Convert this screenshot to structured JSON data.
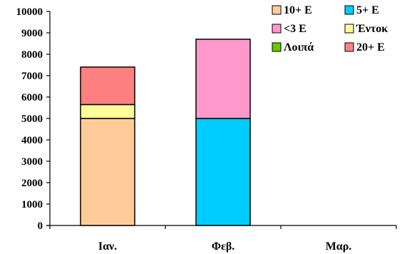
{
  "chart_data": {
    "type": "bar",
    "stacked": true,
    "categories": [
      "Ιαν.",
      "Φεβ.",
      "Μαρ."
    ],
    "series": [
      {
        "name": "10+ E",
        "color": "#FFCC99",
        "values": [
          5000,
          0,
          0
        ]
      },
      {
        "name": "5+ E",
        "color": "#00CCFF",
        "values": [
          0,
          5000,
          0
        ]
      },
      {
        "name": "<3 E",
        "color": "#FF99CC",
        "values": [
          0,
          3700,
          0
        ]
      },
      {
        "name": "Έντοκ",
        "color": "#FFFF99",
        "values": [
          650,
          0,
          0
        ]
      },
      {
        "name": "Λοιπά",
        "color": "#66CC00",
        "values": [
          0,
          0,
          0
        ]
      },
      {
        "name": "20+ E",
        "color": "#FF8080",
        "values": [
          1750,
          0,
          0
        ]
      }
    ],
    "yticks": [
      "0",
      "1000",
      "2000",
      "3000",
      "4000",
      "5000",
      "6000",
      "7000",
      "8000",
      "9000",
      "10000"
    ],
    "ylim": [
      0,
      10000
    ],
    "grid": false,
    "legend_position": "top-right"
  }
}
